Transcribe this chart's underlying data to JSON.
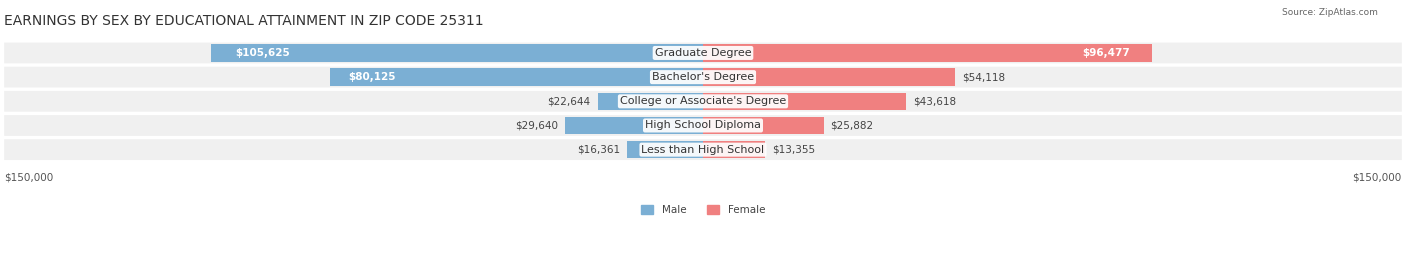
{
  "title": "EARNINGS BY SEX BY EDUCATIONAL ATTAINMENT IN ZIP CODE 25311",
  "source": "Source: ZipAtlas.com",
  "categories": [
    "Less than High School",
    "High School Diploma",
    "College or Associate's Degree",
    "Bachelor's Degree",
    "Graduate Degree"
  ],
  "male_values": [
    16361,
    29640,
    22644,
    80125,
    105625
  ],
  "female_values": [
    13355,
    25882,
    43618,
    54118,
    96477
  ],
  "male_color": "#7bafd4",
  "female_color": "#f08080",
  "male_label": "Male",
  "female_label": "Female",
  "bar_bg_color": "#e8e8e8",
  "row_bg_color": "#f0f0f0",
  "max_value": 150000,
  "xlabel_left": "$150,000",
  "xlabel_right": "$150,000",
  "title_fontsize": 10,
  "label_fontsize": 8,
  "value_fontsize": 7.5,
  "background_color": "#ffffff"
}
